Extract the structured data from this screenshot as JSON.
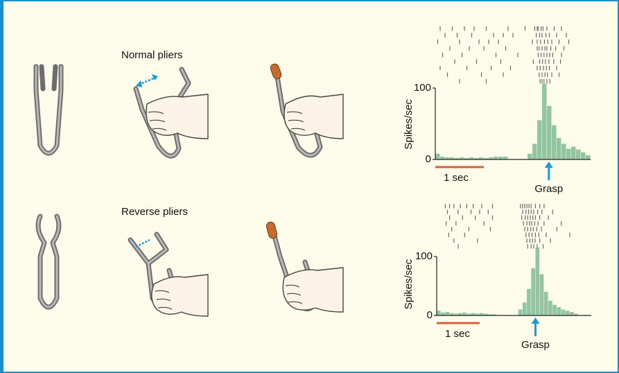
{
  "panels": [
    {
      "label": "Normal pliers"
    },
    {
      "label": "Reverse pliers"
    }
  ],
  "chart_data": [
    {
      "type": "histogram",
      "y_label": "Spikes/sec",
      "color": "#93c6a0",
      "bins": [
        0,
        0.1,
        0.2,
        0.3,
        0.4,
        0.5,
        0.6,
        0.7,
        0.8,
        0.9,
        1.0,
        1.1,
        1.2,
        1.3,
        1.4,
        1.5,
        1.6,
        1.7,
        1.8,
        1.9,
        2.0,
        2.1,
        2.2,
        2.3,
        2.4,
        2.5,
        2.6,
        2.7,
        2.8,
        2.9,
        3.0,
        3.1,
        3.2
      ],
      "values": [
        8,
        4,
        3,
        3,
        2,
        3,
        2,
        3,
        2,
        3,
        2,
        3,
        4,
        4,
        4,
        0,
        0,
        0,
        0,
        8,
        22,
        55,
        106,
        75,
        48,
        30,
        22,
        15,
        18,
        14,
        10,
        6
      ],
      "xlim": [
        0,
        3.2
      ],
      "ylim": [
        0,
        110
      ],
      "yticks": [
        0,
        100
      ],
      "raster_color": "#6a6a6a",
      "raster": [
        [
          0.1,
          0.35,
          0.6,
          0.8,
          1.05,
          1.5,
          1.85,
          2.05,
          2.1,
          2.12,
          2.18,
          2.22,
          2.3,
          2.45,
          2.6
        ],
        [
          0.2,
          0.45,
          0.75,
          1.2,
          1.4,
          1.6,
          2.08,
          2.15,
          2.2,
          2.28,
          2.35,
          2.5,
          2.7
        ],
        [
          0.05,
          0.5,
          0.9,
          1.1,
          1.3,
          2.0,
          2.1,
          2.17,
          2.25,
          2.32,
          2.4,
          2.55,
          2.75
        ],
        [
          0.3,
          0.7,
          1.0,
          1.45,
          2.1,
          2.14,
          2.2,
          2.26,
          2.3,
          2.38,
          2.48,
          2.65
        ],
        [
          0.15,
          0.55,
          1.25,
          1.7,
          2.12,
          2.18,
          2.24,
          2.3,
          2.36,
          2.42,
          2.6
        ],
        [
          0.4,
          0.85,
          1.35,
          2.02,
          2.15,
          2.21,
          2.27,
          2.34,
          2.44,
          2.58
        ],
        [
          0.1,
          0.65,
          1.15,
          1.55,
          2.1,
          2.16,
          2.23,
          2.29,
          2.35,
          2.5
        ],
        [
          0.25,
          0.95,
          1.4,
          2.14,
          2.2,
          2.26,
          2.31,
          2.4,
          2.55
        ],
        [
          0.5,
          1.05,
          2.16,
          2.2,
          2.24,
          2.3,
          2.36
        ]
      ],
      "scale_bar": {
        "value": 1,
        "label": "1 sec"
      },
      "scale_bar_color": "#d4603e",
      "annotation": {
        "x": 2.34,
        "label": "Grasp"
      },
      "annotation_color": "#1a9bd7"
    },
    {
      "type": "histogram",
      "y_label": "Spikes/sec",
      "color": "#93c6a0",
      "bins": [
        0,
        0.1,
        0.2,
        0.3,
        0.4,
        0.5,
        0.6,
        0.7,
        0.8,
        0.9,
        1.0,
        1.1,
        1.2,
        1.3,
        1.4,
        1.5,
        1.6,
        1.7,
        1.8,
        1.9,
        2.0,
        2.1,
        2.2,
        2.3,
        2.4,
        2.5,
        2.6,
        2.7,
        2.8,
        2.9,
        3.0,
        3.1,
        3.2,
        3.3,
        3.4,
        3.5,
        3.6
      ],
      "values": [
        8,
        5,
        6,
        4,
        3,
        4,
        5,
        3,
        4,
        3,
        4,
        3,
        2,
        2,
        0,
        0,
        0,
        0,
        0,
        10,
        22,
        45,
        80,
        115,
        70,
        40,
        25,
        18,
        14,
        10,
        8,
        6,
        3,
        0,
        0,
        0
      ],
      "xlim": [
        0,
        3.6
      ],
      "ylim": [
        0,
        120
      ],
      "yticks": [
        0,
        100
      ],
      "raster_color": "#6a6a6a",
      "raster": [
        [
          0.2,
          0.3,
          0.4,
          0.55,
          0.7,
          0.85,
          1.05,
          1.3,
          1.95,
          2.0,
          2.05,
          2.1,
          2.15,
          2.2,
          2.3,
          2.4,
          2.5
        ],
        [
          0.25,
          0.5,
          0.8,
          1.0,
          1.2,
          2.0,
          2.08,
          2.14,
          2.2,
          2.26,
          2.35,
          2.45,
          2.7
        ],
        [
          0.3,
          0.6,
          0.9,
          1.3,
          1.98,
          2.06,
          2.12,
          2.18,
          2.24,
          2.3,
          2.4,
          2.6
        ],
        [
          0.22,
          0.45,
          1.1,
          2.02,
          2.1,
          2.16,
          2.21,
          2.28,
          2.36,
          2.5,
          2.9
        ],
        [
          0.35,
          0.75,
          1.25,
          2.05,
          2.12,
          2.19,
          2.25,
          2.33,
          2.44,
          2.8
        ],
        [
          0.28,
          0.65,
          2.08,
          2.15,
          2.22,
          2.3,
          2.38,
          2.55,
          3.1
        ],
        [
          0.4,
          0.95,
          2.1,
          2.17,
          2.23,
          2.29,
          2.4,
          2.65
        ],
        [
          0.5,
          2.12,
          2.2,
          2.26,
          2.34,
          2.48
        ]
      ],
      "scale_bar": {
        "value": 1,
        "label": "1 sec"
      },
      "scale_bar_color": "#d4603e",
      "annotation": {
        "x": 2.3,
        "label": "Grasp"
      },
      "annotation_color": "#1a9bd7"
    }
  ]
}
